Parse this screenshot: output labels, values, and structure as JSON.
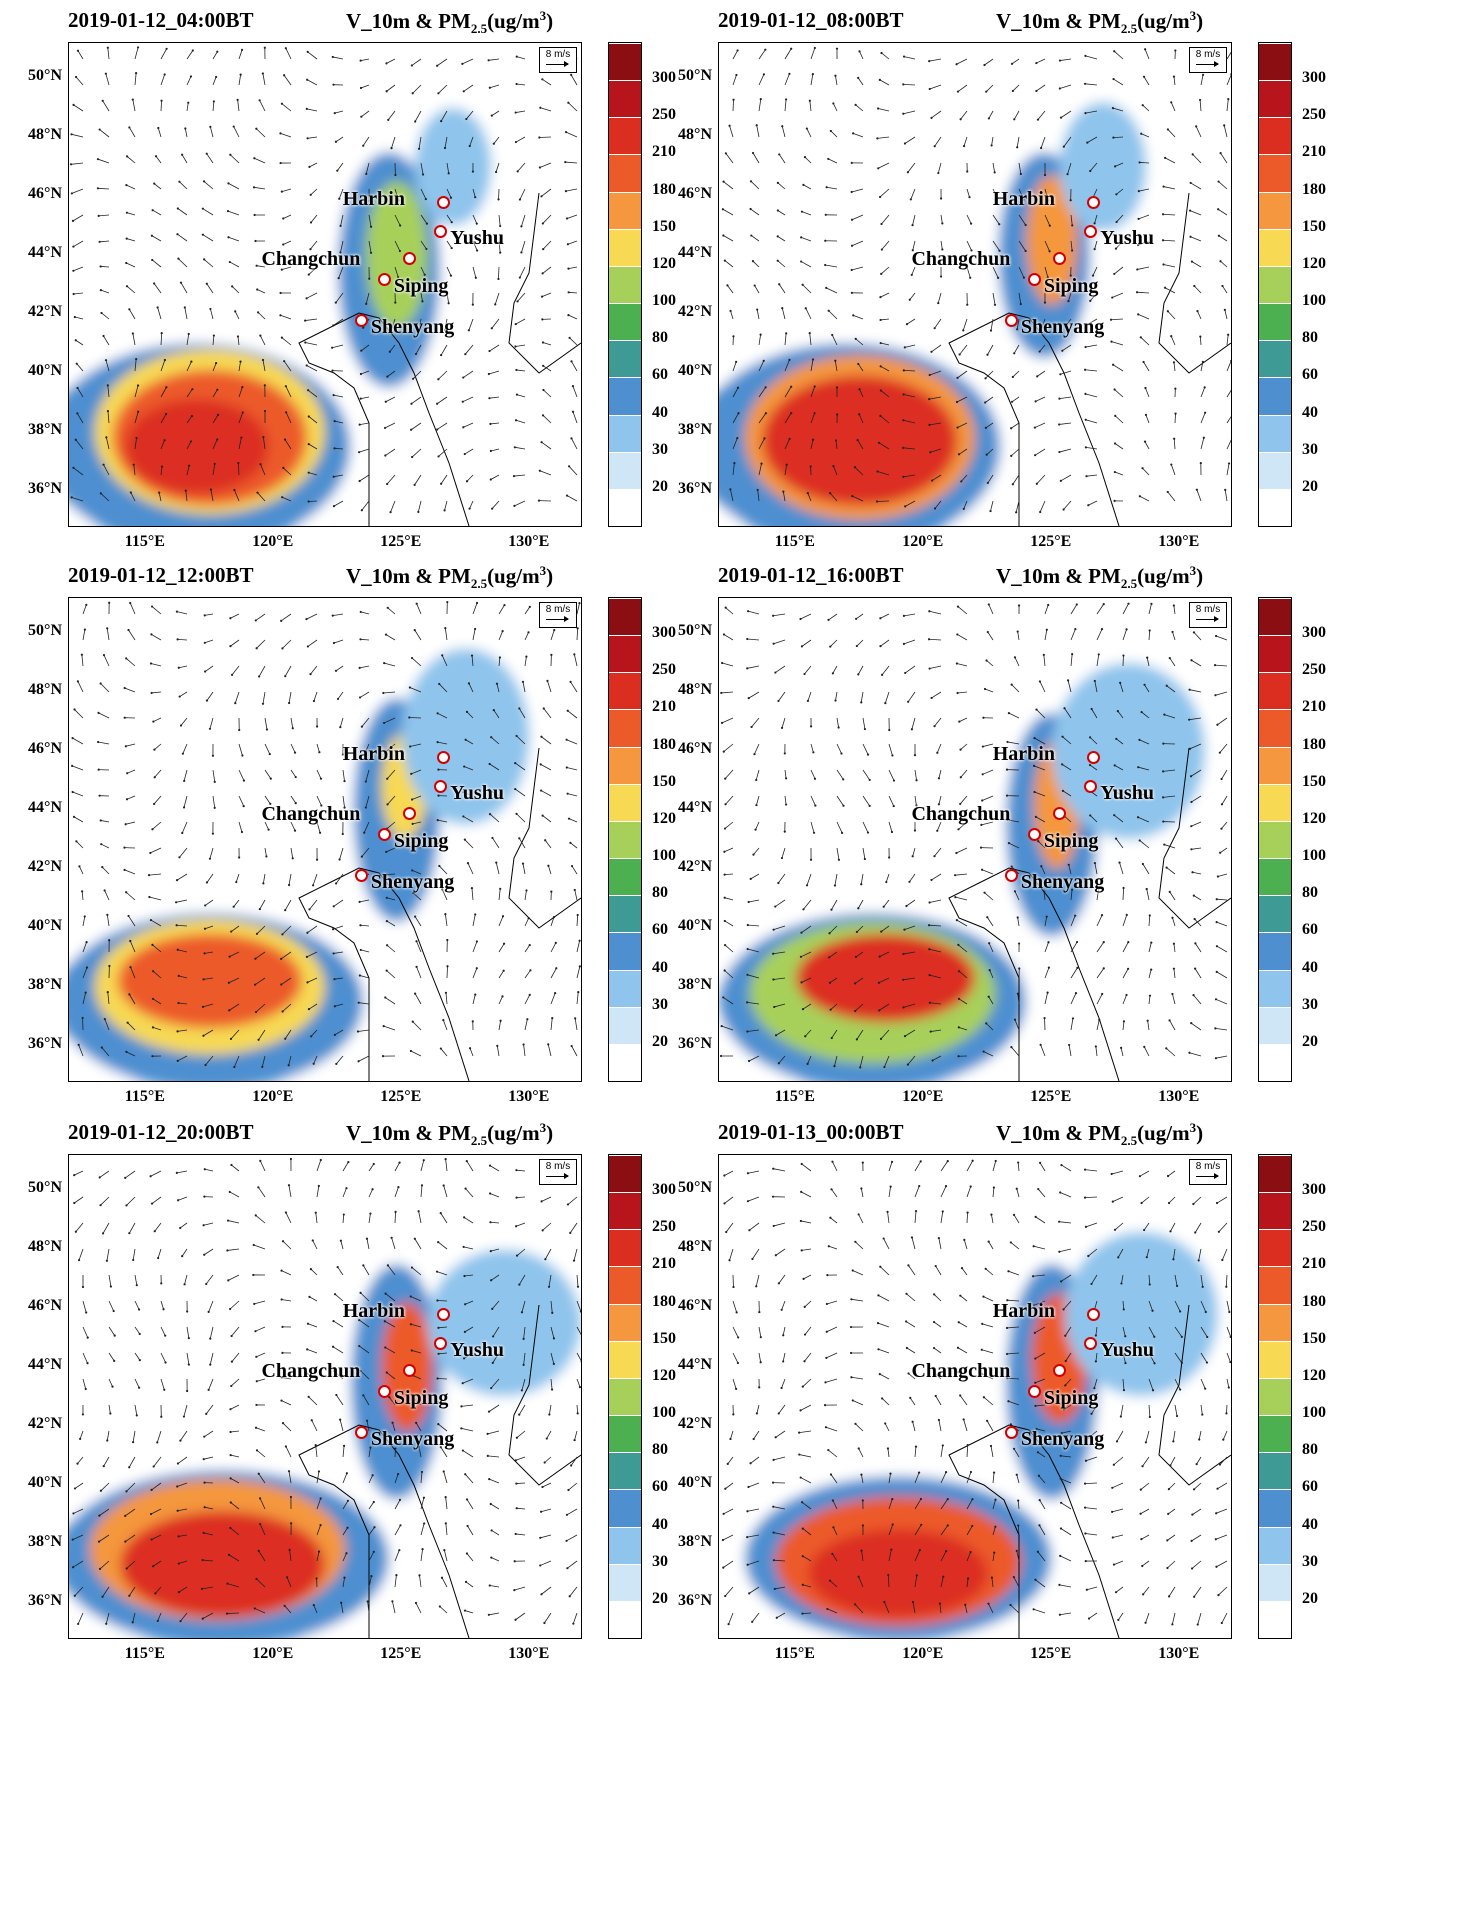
{
  "variable_label": {
    "prefix": "V_10m & PM",
    "sub": "2.5",
    "unit_open": "(ug/m",
    "sup": "3",
    "unit_close": ")"
  },
  "reference_vector": "8 m/s",
  "lat_labels": [
    "50°N",
    "48°N",
    "46°N",
    "44°N",
    "42°N",
    "40°N",
    "38°N",
    "36°N"
  ],
  "lon_labels": [
    "115°E",
    "120°E",
    "125°E",
    "130°E"
  ],
  "colorbar": {
    "levels": [
      "300",
      "250",
      "210",
      "180",
      "150",
      "120",
      "100",
      "80",
      "60",
      "40",
      "30",
      "20"
    ],
    "colors": [
      "#8b0f12",
      "#b8141b",
      "#dc2d21",
      "#ec5a2a",
      "#f4973e",
      "#f7d953",
      "#a7d05a",
      "#4caf50",
      "#3e9a95",
      "#4e8fd0",
      "#8fc4ec",
      "#cfe6f7",
      "#ffffff"
    ]
  },
  "cities": [
    "Harbin",
    "Yushu",
    "Changchun",
    "Siping",
    "Shenyang"
  ],
  "panels": [
    {
      "title": "2019-01-12_04:00BT"
    },
    {
      "title": "2019-01-12_08:00BT"
    },
    {
      "title": "2019-01-12_12:00BT"
    },
    {
      "title": "2019-01-12_16:00BT"
    },
    {
      "title": "2019-01-12_20:00BT"
    },
    {
      "title": "2019-01-13_00:00BT"
    }
  ]
}
